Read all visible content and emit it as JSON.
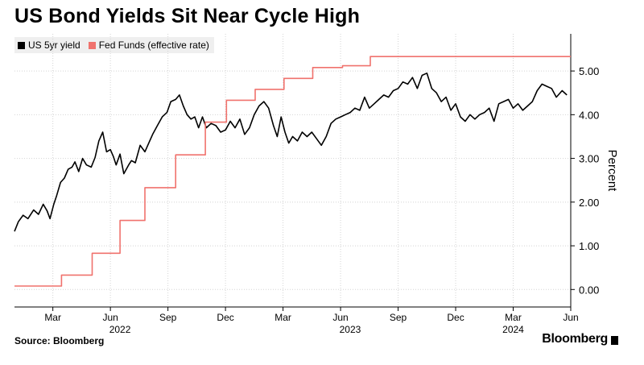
{
  "title": "US Bond Yields Sit Near Cycle High",
  "footer": {
    "source": "Source: Bloomberg",
    "brand": "Bloomberg"
  },
  "colors": {
    "series_us5yr": "#000000",
    "series_fedfunds": "#f0726d",
    "grid": "#d4d4d4"
  },
  "chart_data": {
    "type": "line",
    "title": "US Bond Yields Sit Near Cycle High",
    "ylabel": "Percent",
    "xlabel": "",
    "ylim": [
      -0.4,
      5.85
    ],
    "xlim": [
      0,
      29.0
    ],
    "x_unit": "months since 2022-01-01",
    "y_ticks": [
      0,
      1,
      2,
      3,
      4,
      5
    ],
    "y_tick_labels": [
      "0.00",
      "1.00",
      "2.00",
      "3.00",
      "4.00",
      "5.00"
    ],
    "x_ticks": [
      {
        "x": 2.0,
        "label": "Mar"
      },
      {
        "x": 5.0,
        "label": "Jun"
      },
      {
        "x": 8.0,
        "label": "Sep"
      },
      {
        "x": 11.0,
        "label": "Dec"
      },
      {
        "x": 14.0,
        "label": "Mar"
      },
      {
        "x": 17.0,
        "label": "Jun"
      },
      {
        "x": 20.0,
        "label": "Sep"
      },
      {
        "x": 23.0,
        "label": "Dec"
      },
      {
        "x": 26.0,
        "label": "Mar"
      },
      {
        "x": 29.0,
        "label": "Jun"
      }
    ],
    "x_year_labels": [
      {
        "x": 5.5,
        "label": "2022"
      },
      {
        "x": 17.5,
        "label": "2023"
      },
      {
        "x": 26.0,
        "label": "2024"
      }
    ],
    "grid": true,
    "legend_position": "top-left",
    "series": [
      {
        "name": "US 5yr yield",
        "color": "#000000",
        "x": [
          0.0,
          0.2,
          0.45,
          0.7,
          1.0,
          1.25,
          1.5,
          1.7,
          1.85,
          2.05,
          2.2,
          2.4,
          2.6,
          2.8,
          3.0,
          3.15,
          3.35,
          3.55,
          3.75,
          4.0,
          4.2,
          4.4,
          4.6,
          4.8,
          5.0,
          5.15,
          5.3,
          5.5,
          5.7,
          5.95,
          6.1,
          6.3,
          6.55,
          6.8,
          7.0,
          7.2,
          7.45,
          7.7,
          7.95,
          8.15,
          8.4,
          8.6,
          8.8,
          9.0,
          9.2,
          9.4,
          9.6,
          9.8,
          10.0,
          10.25,
          10.5,
          10.75,
          11.0,
          11.25,
          11.5,
          11.75,
          12.0,
          12.25,
          12.5,
          12.75,
          13.0,
          13.25,
          13.5,
          13.7,
          13.9,
          14.1,
          14.3,
          14.5,
          14.75,
          15.0,
          15.25,
          15.5,
          15.75,
          16.0,
          16.25,
          16.5,
          16.75,
          17.0,
          17.25,
          17.5,
          17.75,
          18.0,
          18.25,
          18.5,
          18.75,
          19.0,
          19.25,
          19.5,
          19.75,
          20.0,
          20.25,
          20.5,
          20.75,
          21.0,
          21.25,
          21.5,
          21.75,
          22.0,
          22.25,
          22.5,
          22.75,
          23.0,
          23.25,
          23.5,
          23.75,
          24.0,
          24.25,
          24.5,
          24.75,
          25.0,
          25.25,
          25.5,
          25.75,
          26.0,
          26.25,
          26.5,
          26.75,
          27.0,
          27.25,
          27.5,
          27.75,
          28.0,
          28.25,
          28.55,
          28.8
        ],
        "values": [
          1.33,
          1.55,
          1.7,
          1.62,
          1.82,
          1.72,
          1.95,
          1.8,
          1.62,
          1.95,
          2.15,
          2.45,
          2.55,
          2.75,
          2.8,
          2.92,
          2.7,
          3.0,
          2.85,
          2.8,
          3.02,
          3.4,
          3.6,
          3.15,
          3.2,
          3.05,
          2.85,
          3.1,
          2.65,
          2.85,
          2.95,
          2.9,
          3.3,
          3.15,
          3.35,
          3.55,
          3.75,
          3.95,
          4.05,
          4.3,
          4.35,
          4.45,
          4.2,
          4.0,
          3.9,
          3.95,
          3.7,
          3.95,
          3.7,
          3.8,
          3.75,
          3.6,
          3.65,
          3.85,
          3.7,
          3.9,
          3.55,
          3.7,
          4.0,
          4.2,
          4.3,
          4.15,
          3.75,
          3.5,
          3.95,
          3.6,
          3.35,
          3.5,
          3.4,
          3.6,
          3.5,
          3.6,
          3.45,
          3.3,
          3.5,
          3.8,
          3.9,
          3.95,
          4.0,
          4.05,
          4.15,
          4.1,
          4.4,
          4.15,
          4.25,
          4.35,
          4.45,
          4.4,
          4.55,
          4.6,
          4.75,
          4.7,
          4.85,
          4.6,
          4.9,
          4.95,
          4.6,
          4.5,
          4.3,
          4.4,
          4.1,
          4.25,
          3.95,
          3.85,
          4.0,
          3.9,
          4.0,
          4.05,
          4.15,
          3.85,
          4.25,
          4.3,
          4.35,
          4.15,
          4.25,
          4.1,
          4.2,
          4.3,
          4.55,
          4.7,
          4.65,
          4.6,
          4.4,
          4.55,
          4.45
        ]
      },
      {
        "name": "Fed Funds (effective rate)",
        "color": "#f0726d",
        "x": [
          0.0,
          2.45,
          2.45,
          4.05,
          4.05,
          5.5,
          5.5,
          6.8,
          6.8,
          8.4,
          8.4,
          9.95,
          9.95,
          11.05,
          11.05,
          12.55,
          12.55,
          14.05,
          14.05,
          15.55,
          15.55,
          17.1,
          17.1,
          18.55,
          18.55,
          29.0
        ],
        "values": [
          0.08,
          0.08,
          0.33,
          0.33,
          0.83,
          0.83,
          1.58,
          1.58,
          2.33,
          2.33,
          3.08,
          3.08,
          3.83,
          3.83,
          4.33,
          4.33,
          4.58,
          4.58,
          4.83,
          4.83,
          5.08,
          5.08,
          5.12,
          5.12,
          5.33,
          5.33
        ]
      }
    ]
  }
}
